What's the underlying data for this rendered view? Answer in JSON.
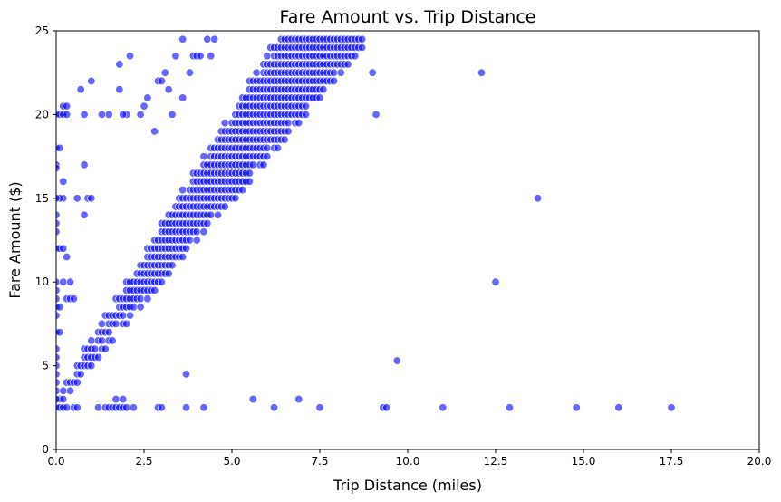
{
  "chart_data": {
    "type": "scatter",
    "title": "Fare Amount vs. Trip Distance",
    "xlabel": "Trip Distance (miles)",
    "ylabel": "Fare Amount ($)",
    "xlim": [
      0,
      20
    ],
    "ylim": [
      0,
      25
    ],
    "xticks": [
      "0.0",
      "2.5",
      "5.0",
      "7.5",
      "10.0",
      "12.5",
      "15.0",
      "17.5",
      "20.0"
    ],
    "yticks": [
      "0",
      "5",
      "10",
      "15",
      "20",
      "25"
    ],
    "grid": false,
    "legend": "none",
    "marker_color": "#0000ff",
    "marker_edge_color": "#ffffff",
    "marker_alpha": 0.6,
    "dense_band": {
      "description_hidden": true,
      "x_step": 0.1,
      "y_step": 0.5,
      "base_fare": 2.5,
      "min_rate": 2.45,
      "max_rate": 3.4,
      "y_max": 24.5
    },
    "points": [
      [
        0.0,
        17.0
      ],
      [
        0.0,
        16.8
      ],
      [
        0.0,
        18.0
      ],
      [
        0.1,
        18.0
      ],
      [
        0.0,
        20.0
      ],
      [
        0.1,
        20.0
      ],
      [
        0.2,
        20.0
      ],
      [
        0.2,
        20.5
      ],
      [
        0.3,
        20.5
      ],
      [
        0.3,
        20.0
      ],
      [
        0.2,
        16.0
      ],
      [
        0.2,
        15.0
      ],
      [
        0.1,
        15.0
      ],
      [
        0.0,
        15.0
      ],
      [
        0.0,
        14.0
      ],
      [
        0.0,
        13.5
      ],
      [
        0.0,
        13.0
      ],
      [
        0.0,
        12.0
      ],
      [
        0.1,
        12.0
      ],
      [
        0.0,
        10.0
      ],
      [
        0.2,
        10.0
      ],
      [
        0.0,
        9.5
      ],
      [
        0.0,
        9.0
      ],
      [
        0.3,
        9.0
      ],
      [
        0.4,
        9.0
      ],
      [
        0.0,
        8.5
      ],
      [
        0.1,
        8.5
      ],
      [
        0.0,
        8.0
      ],
      [
        0.0,
        7.0
      ],
      [
        0.1,
        7.0
      ],
      [
        0.0,
        6.0
      ],
      [
        0.0,
        5.5
      ],
      [
        0.0,
        5.0
      ],
      [
        0.0,
        4.5
      ],
      [
        0.0,
        4.0
      ],
      [
        0.0,
        3.5
      ],
      [
        0.0,
        3.0
      ],
      [
        0.0,
        2.5
      ],
      [
        0.1,
        2.5
      ],
      [
        0.2,
        2.5
      ],
      [
        0.3,
        2.5
      ],
      [
        0.5,
        2.5
      ],
      [
        0.6,
        2.5
      ],
      [
        0.4,
        10.0
      ],
      [
        0.3,
        11.5
      ],
      [
        0.2,
        12.0
      ],
      [
        0.7,
        21.5
      ],
      [
        1.0,
        22.0
      ],
      [
        0.8,
        20.0
      ],
      [
        0.8,
        17.0
      ],
      [
        0.6,
        15.0
      ],
      [
        0.9,
        15.0
      ],
      [
        1.0,
        15.0
      ],
      [
        0.8,
        14.0
      ],
      [
        0.5,
        9.0
      ],
      [
        1.2,
        2.5
      ],
      [
        1.4,
        2.5
      ],
      [
        1.5,
        2.5
      ],
      [
        1.6,
        2.5
      ],
      [
        1.7,
        2.5
      ],
      [
        1.8,
        2.5
      ],
      [
        1.9,
        2.5
      ],
      [
        2.0,
        2.5
      ],
      [
        2.2,
        2.5
      ],
      [
        1.7,
        3.0
      ],
      [
        1.9,
        3.0
      ],
      [
        2.9,
        2.5
      ],
      [
        3.0,
        2.5
      ],
      [
        3.7,
        2.5
      ],
      [
        4.2,
        2.5
      ],
      [
        3.7,
        4.5
      ],
      [
        5.6,
        3.0
      ],
      [
        6.2,
        2.5
      ],
      [
        6.9,
        3.0
      ],
      [
        7.5,
        2.5
      ],
      [
        9.3,
        2.5
      ],
      [
        9.4,
        2.5
      ],
      [
        9.7,
        5.3
      ],
      [
        11.0,
        2.5
      ],
      [
        12.5,
        10.0
      ],
      [
        12.9,
        2.5
      ],
      [
        13.7,
        15.0
      ],
      [
        14.8,
        2.5
      ],
      [
        16.0,
        2.5
      ],
      [
        17.5,
        2.5
      ],
      [
        12.1,
        22.5
      ],
      [
        9.0,
        22.5
      ],
      [
        9.1,
        20.0
      ],
      [
        1.8,
        23.0
      ],
      [
        2.1,
        23.5
      ],
      [
        1.8,
        21.5
      ],
      [
        3.6,
        24.5
      ],
      [
        4.3,
        24.5
      ],
      [
        4.5,
        24.5
      ],
      [
        4.4,
        23.5
      ],
      [
        3.9,
        23.5
      ],
      [
        4.0,
        23.5
      ],
      [
        4.1,
        23.5
      ],
      [
        3.4,
        23.5
      ],
      [
        3.8,
        22.5
      ],
      [
        3.1,
        22.5
      ],
      [
        2.9,
        22.0
      ],
      [
        3.0,
        22.0
      ],
      [
        2.6,
        21.0
      ],
      [
        2.5,
        20.5
      ],
      [
        2.4,
        20.0
      ],
      [
        2.0,
        20.0
      ],
      [
        1.9,
        20.0
      ],
      [
        1.5,
        20.0
      ],
      [
        1.3,
        20.0
      ],
      [
        3.6,
        21.0
      ],
      [
        3.2,
        21.5
      ],
      [
        3.3,
        20.0
      ],
      [
        2.8,
        19.0
      ]
    ]
  }
}
